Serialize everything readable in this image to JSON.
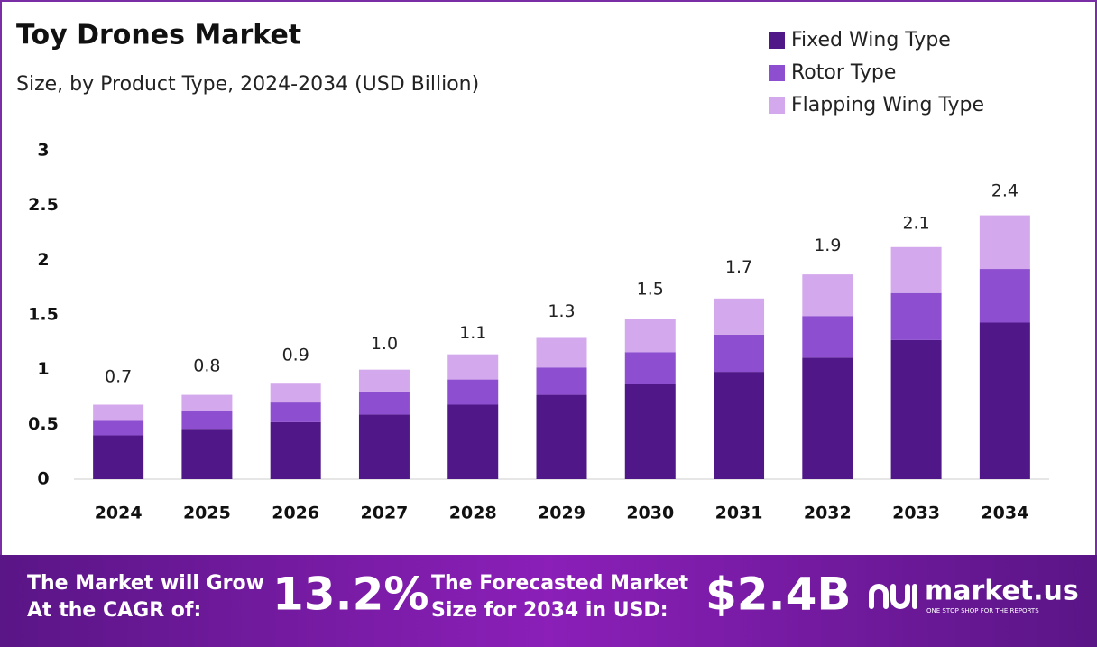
{
  "chart_data": {
    "type": "stacked_bar",
    "title": "Toy Drones Market",
    "subtitle": "Size, by Product Type, 2024-2034 (USD Billion)",
    "categories": [
      "2024",
      "2025",
      "2026",
      "2027",
      "2028",
      "2029",
      "2030",
      "2031",
      "2032",
      "2033",
      "2034"
    ],
    "series": [
      {
        "name": "Fixed Wing Type",
        "color": "#4f1787",
        "values": [
          0.4,
          0.46,
          0.52,
          0.59,
          0.68,
          0.77,
          0.87,
          0.98,
          1.11,
          1.27,
          1.43
        ]
      },
      {
        "name": "Rotor Type",
        "color": "#8d4fd0",
        "values": [
          0.14,
          0.16,
          0.18,
          0.21,
          0.23,
          0.25,
          0.29,
          0.34,
          0.38,
          0.43,
          0.49
        ]
      },
      {
        "name": "Flapping Wing Type",
        "color": "#d3a8ec",
        "values": [
          0.14,
          0.15,
          0.18,
          0.2,
          0.23,
          0.27,
          0.3,
          0.33,
          0.38,
          0.42,
          0.49
        ]
      }
    ],
    "totals": {
      "values": [
        0.7,
        0.8,
        0.9,
        1.0,
        1.1,
        1.3,
        1.5,
        1.7,
        1.9,
        2.1,
        2.4
      ],
      "value_labels": [
        "0.7",
        "0.8",
        "0.9",
        "1.0",
        "1.1",
        "1.3",
        "1.5",
        "1.7",
        "1.9",
        "2.1",
        "2.4"
      ]
    },
    "ylim": [
      0,
      3
    ],
    "yticks": [
      0,
      0.5,
      1,
      1.5,
      2,
      2.5,
      3
    ],
    "grid": false,
    "legend": "top-right"
  },
  "footer": {
    "cagr_text": [
      "The Market will Grow",
      "At the CAGR of:"
    ],
    "cagr_value": "13.2%",
    "forecast_text": [
      "The Forecasted Market",
      "Size for 2034 in USD:"
    ],
    "forecast_value": "$2.4B",
    "brand": "market.us",
    "tagline": "ONE STOP SHOP FOR THE REPORTS"
  }
}
